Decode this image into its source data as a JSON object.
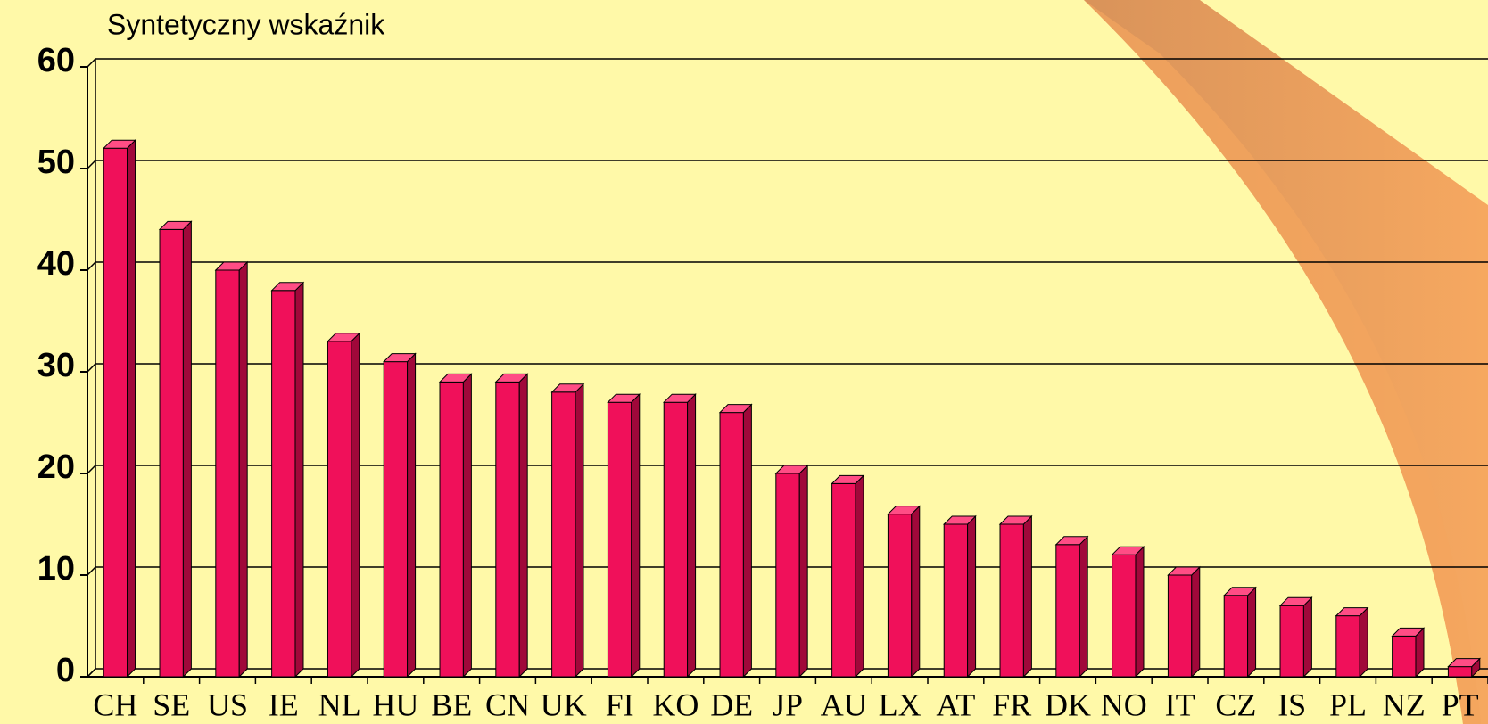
{
  "chart_data": {
    "type": "bar",
    "title": "Syntetyczny wskaźnik",
    "categories": [
      "CH",
      "SE",
      "US",
      "IE",
      "NL",
      "HU",
      "BE",
      "CN",
      "UK",
      "FI",
      "KO",
      "DE",
      "JP",
      "AU",
      "LX",
      "AT",
      "FR",
      "DK",
      "NO",
      "IT",
      "CZ",
      "IS",
      "PL",
      "NZ",
      "PT"
    ],
    "values": [
      52,
      44,
      40,
      38,
      33,
      31,
      29,
      29,
      28,
      27,
      27,
      26,
      20,
      19,
      16,
      15,
      15,
      13,
      12,
      10,
      8,
      7,
      6,
      4,
      1
    ],
    "color": "#f0105a",
    "ylim": [
      0,
      60
    ],
    "yticks": [
      0,
      10,
      20,
      30,
      40,
      50,
      60
    ],
    "grid": true
  }
}
